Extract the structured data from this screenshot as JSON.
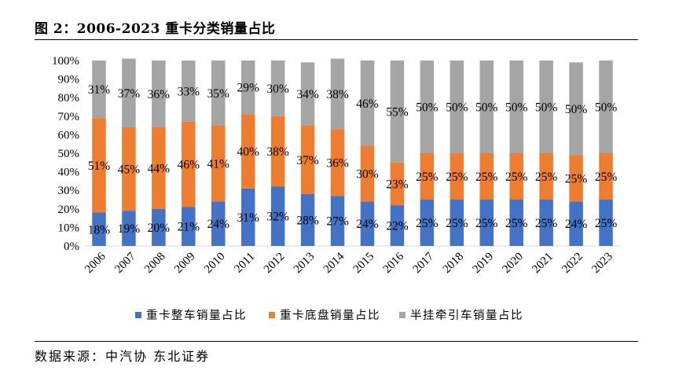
{
  "figure": {
    "title": "图 2：2006-2023 重卡分类销量占比",
    "source_label": "数据来源：",
    "source_text": "中汽协 东北证券"
  },
  "chart_data": {
    "type": "bar",
    "stacked": true,
    "percent": true,
    "title": "",
    "xlabel": "",
    "ylabel": "",
    "ylim": [
      0,
      100
    ],
    "yticks": [
      "0%",
      "10%",
      "20%",
      "30%",
      "40%",
      "50%",
      "60%",
      "70%",
      "80%",
      "90%",
      "100%"
    ],
    "grid": false,
    "legend_position": "bottom",
    "categories": [
      "2006",
      "2007",
      "2008",
      "2009",
      "2010",
      "2011",
      "2012",
      "2013",
      "2014",
      "2015",
      "2016",
      "2017",
      "2018",
      "2019",
      "2020",
      "2021",
      "2022",
      "2023"
    ],
    "series": [
      {
        "name": "重卡整车销量占比",
        "color": "#4472C4",
        "values": [
          18,
          19,
          20,
          21,
          24,
          31,
          32,
          28,
          27,
          24,
          22,
          25,
          25,
          25,
          25,
          25,
          24,
          25
        ]
      },
      {
        "name": "重卡底盘销量占比",
        "color": "#ED7D31",
        "values": [
          51,
          45,
          44,
          46,
          41,
          40,
          38,
          37,
          36,
          30,
          23,
          25,
          25,
          25,
          25,
          25,
          25,
          25
        ]
      },
      {
        "name": "半挂牵引车销量占比",
        "color": "#A5A5A5",
        "values": [
          31,
          37,
          36,
          33,
          35,
          29,
          30,
          34,
          38,
          46,
          55,
          50,
          50,
          50,
          50,
          50,
          50,
          50
        ]
      }
    ],
    "data_labels": {
      "gray": [
        "31%",
        "37%",
        "36%",
        "33%",
        "35%",
        "29%",
        "30%",
        "34%",
        "38%",
        "46%",
        "55%",
        "50%",
        "50%",
        "50%",
        "50%",
        "50%",
        "50%",
        "50%"
      ],
      "orange": [
        "51%",
        "45%",
        "44%",
        "46%",
        "41%",
        "40%",
        "38%",
        "37%",
        "36%",
        "30%",
        "23%",
        "25%",
        "25%",
        "25%",
        "25%",
        "25%",
        "25%",
        "25%"
      ],
      "blue": [
        "18%",
        "19%",
        "20%",
        "21%",
        "24%",
        "31%",
        "32%",
        "28%",
        "27%",
        "24%",
        "22%",
        "25%",
        "25%",
        "25%",
        "25%",
        "25%",
        "24%",
        "25%"
      ]
    }
  }
}
